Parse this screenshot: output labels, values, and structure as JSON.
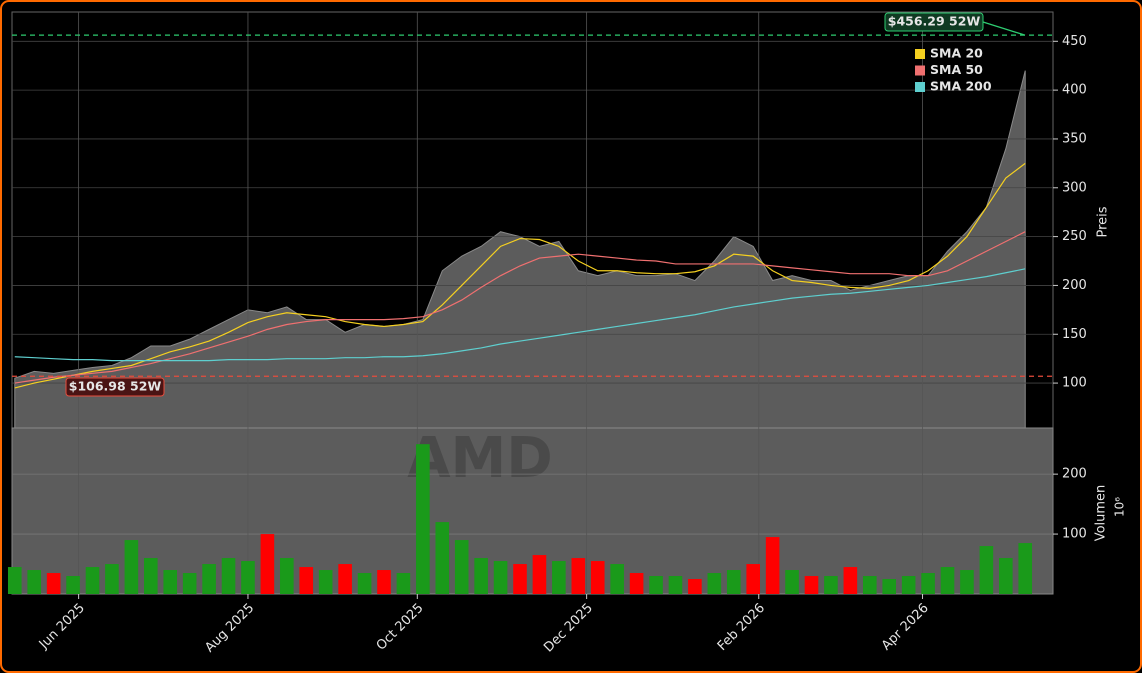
{
  "chart_data": {
    "type": "line",
    "x": [
      "2025-05-09",
      "2025-05-16",
      "2025-05-23",
      "2025-05-30",
      "2025-06-06",
      "2025-06-13",
      "2025-06-20",
      "2025-06-27",
      "2025-07-04",
      "2025-07-11",
      "2025-07-18",
      "2025-07-25",
      "2025-08-01",
      "2025-08-08",
      "2025-08-15",
      "2025-08-22",
      "2025-08-29",
      "2025-09-05",
      "2025-09-12",
      "2025-09-19",
      "2025-09-26",
      "2025-10-03",
      "2025-10-10",
      "2025-10-17",
      "2025-10-24",
      "2025-10-31",
      "2025-11-07",
      "2025-11-14",
      "2025-11-21",
      "2025-11-28",
      "2025-12-05",
      "2025-12-12",
      "2025-12-19",
      "2025-12-26",
      "2026-01-02",
      "2026-01-09",
      "2026-01-16",
      "2026-01-23",
      "2026-01-30",
      "2026-02-06",
      "2026-02-13",
      "2026-02-20",
      "2026-02-27",
      "2026-03-06",
      "2026-03-13",
      "2026-03-20",
      "2026-03-27",
      "2026-04-03",
      "2026-04-10",
      "2026-04-17",
      "2026-04-24",
      "2026-05-01",
      "2026-05-08"
    ],
    "xlim": [
      "2025-05-08",
      "2026-05-18"
    ],
    "xticks": [
      {
        "value": "2025-06-01",
        "label": "Jun 2025"
      },
      {
        "value": "2025-08-01",
        "label": "Aug 2025"
      },
      {
        "value": "2025-10-01",
        "label": "Oct 2025"
      },
      {
        "value": "2025-12-01",
        "label": "Dec 2025"
      },
      {
        "value": "2026-02-01",
        "label": "Feb 2026"
      },
      {
        "value": "2026-04-01",
        "label": "Apr 2026"
      }
    ],
    "area": {
      "color": "#5c5c5c",
      "values": [
        105,
        112,
        110,
        113,
        116,
        118,
        126,
        138,
        138,
        145,
        155,
        165,
        175,
        172,
        178,
        165,
        165,
        152,
        160,
        158,
        160,
        165,
        215,
        230,
        240,
        255,
        250,
        240,
        245,
        215,
        210,
        215,
        210,
        210,
        212,
        205,
        225,
        250,
        240,
        205,
        210,
        205,
        205,
        195,
        200,
        205,
        210,
        210,
        235,
        255,
        280,
        340,
        420
      ]
    },
    "series": [
      {
        "name": "SMA 20",
        "color": "#f5d020",
        "values": [
          95,
          100,
          104,
          108,
          112,
          115,
          118,
          125,
          132,
          137,
          143,
          152,
          162,
          168,
          172,
          170,
          168,
          163,
          160,
          158,
          160,
          163,
          180,
          200,
          220,
          240,
          248,
          247,
          240,
          225,
          215,
          215,
          213,
          212,
          212,
          214,
          220,
          232,
          230,
          215,
          205,
          203,
          200,
          198,
          197,
          200,
          205,
          215,
          230,
          250,
          280,
          310,
          325
        ]
      },
      {
        "name": "SMA 50",
        "color": "#f07070",
        "values": [
          100,
          103,
          106,
          108,
          110,
          112,
          116,
          120,
          125,
          130,
          136,
          142,
          148,
          155,
          160,
          163,
          165,
          165,
          165,
          165,
          166,
          168,
          175,
          185,
          198,
          210,
          220,
          228,
          230,
          232,
          230,
          228,
          226,
          225,
          222,
          222,
          222,
          222,
          222,
          220,
          218,
          216,
          214,
          212,
          212,
          212,
          210,
          210,
          215,
          225,
          235,
          245,
          255
        ]
      },
      {
        "name": "SMA 200",
        "color": "#5ecfcf",
        "values": [
          127,
          126,
          125,
          124,
          124,
          123,
          123,
          123,
          123,
          123,
          123,
          124,
          124,
          124,
          125,
          125,
          125,
          126,
          126,
          127,
          127,
          128,
          130,
          133,
          136,
          140,
          143,
          146,
          149,
          152,
          155,
          158,
          161,
          164,
          167,
          170,
          174,
          178,
          181,
          184,
          187,
          189,
          191,
          192,
          194,
          196,
          198,
          200,
          203,
          206,
          209,
          213,
          217
        ]
      }
    ],
    "ylim": [
      54,
      480
    ],
    "yticks": [
      100,
      150,
      200,
      250,
      300,
      350,
      400,
      450
    ],
    "ylabel": "Preis",
    "grid": true,
    "annotations": [
      {
        "label": "$456.29 52W",
        "value": 456.29,
        "color": "#2ecc71"
      },
      {
        "label": "$106.98 52W",
        "value": 106.98,
        "color": "#e74c3c"
      }
    ],
    "watermark": "AMD",
    "volume": {
      "type": "bar",
      "values": [
        45,
        40,
        35,
        30,
        45,
        50,
        90,
        60,
        40,
        35,
        50,
        60,
        55,
        100,
        60,
        45,
        40,
        50,
        35,
        40,
        35,
        250,
        120,
        90,
        60,
        55,
        50,
        65,
        55,
        60,
        55,
        50,
        35,
        30,
        30,
        25,
        35,
        40,
        50,
        95,
        40,
        30,
        30,
        45,
        30,
        25,
        30,
        35,
        45,
        40,
        80,
        60,
        85
      ],
      "colors": {
        "up": "#1a9a1a",
        "down": "#ff0000"
      },
      "ylim": [
        0,
        277
      ],
      "yticks": [
        100,
        200
      ],
      "ylabel": "Volumen",
      "unit": "10⁶"
    }
  }
}
